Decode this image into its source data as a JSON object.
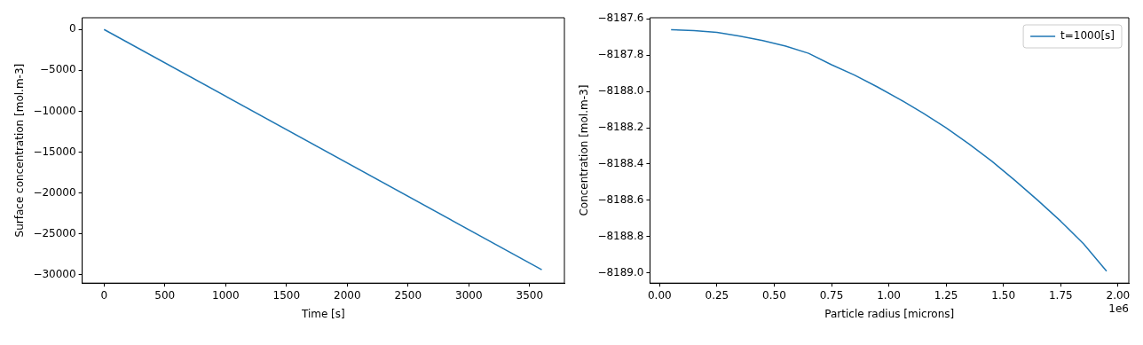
{
  "chart_data": [
    {
      "type": "line",
      "xlabel": "Time [s]",
      "ylabel": "Surface concentration [mol.m-3]",
      "x": [
        0,
        3600
      ],
      "series": [
        {
          "color": "#1f77b4",
          "values": [
            0,
            -29400
          ]
        }
      ],
      "xlim": [
        -180,
        3786
      ],
      "xticks": [
        0,
        500,
        1000,
        1500,
        2000,
        2500,
        3000,
        3500
      ],
      "ylim": [
        -31030,
        1440
      ],
      "yticks": [
        0,
        {
          "value": -5000,
          "label": "−5000"
        },
        {
          "value": -10000,
          "label": "−10000"
        },
        {
          "value": -15000,
          "label": "−15000"
        },
        {
          "value": -20000,
          "label": "−20000"
        },
        {
          "value": -25000,
          "label": "−25000"
        },
        {
          "value": -30000,
          "label": "−30000"
        }
      ],
      "grid": false,
      "marker": "none",
      "line_style": "solid"
    },
    {
      "type": "line",
      "xlabel": "Particle radius [microns]",
      "ylabel": "Concentration [mol.m-3]",
      "annotations": [
        "1e6"
      ],
      "x": [
        0.05,
        0.15,
        0.25,
        0.35,
        0.45,
        0.55,
        0.65,
        0.75,
        0.85,
        0.95,
        1.05,
        1.15,
        1.25,
        1.35,
        1.45,
        1.55,
        1.65,
        1.75,
        1.85,
        1.95
      ],
      "series": [
        {
          "name": "t=1000[s]",
          "color": "#1f77b4",
          "values": [
            -8187.66,
            -8187.665,
            -8187.675,
            -8187.695,
            -8187.72,
            -8187.75,
            -8187.79,
            -8187.853,
            -8187.91,
            -8187.975,
            -8188.045,
            -8188.12,
            -8188.2,
            -8188.29,
            -8188.385,
            -8188.49,
            -8188.6,
            -8188.715,
            -8188.84,
            -8188.99
          ]
        }
      ],
      "xlim": [
        -0.042,
        2.047
      ],
      "xticks": [
        {
          "value": 0,
          "label": "0.00"
        },
        0.25,
        {
          "value": 0.5,
          "label": "0.50"
        },
        0.75,
        {
          "value": 1,
          "label": "1.00"
        },
        1.25,
        {
          "value": 1.5,
          "label": "1.50"
        },
        1.75,
        {
          "value": 2,
          "label": "2.00"
        }
      ],
      "ylim": [
        -8189.056,
        -8187.594
      ],
      "yticks": [
        {
          "value": -8187.6,
          "label": "−8187.6"
        },
        {
          "value": -8187.8,
          "label": "−8187.8"
        },
        {
          "value": -8188.0,
          "label": "−8188.0"
        },
        {
          "value": -8188.2,
          "label": "−8188.2"
        },
        {
          "value": -8188.4,
          "label": "−8188.4"
        },
        {
          "value": -8188.6,
          "label": "−8188.6"
        },
        {
          "value": -8188.8,
          "label": "−8188.8"
        },
        {
          "value": -8189.0,
          "label": "−8189.0"
        }
      ],
      "grid": false,
      "legend": "top right",
      "marker": "none",
      "line_style": "solid"
    }
  ]
}
